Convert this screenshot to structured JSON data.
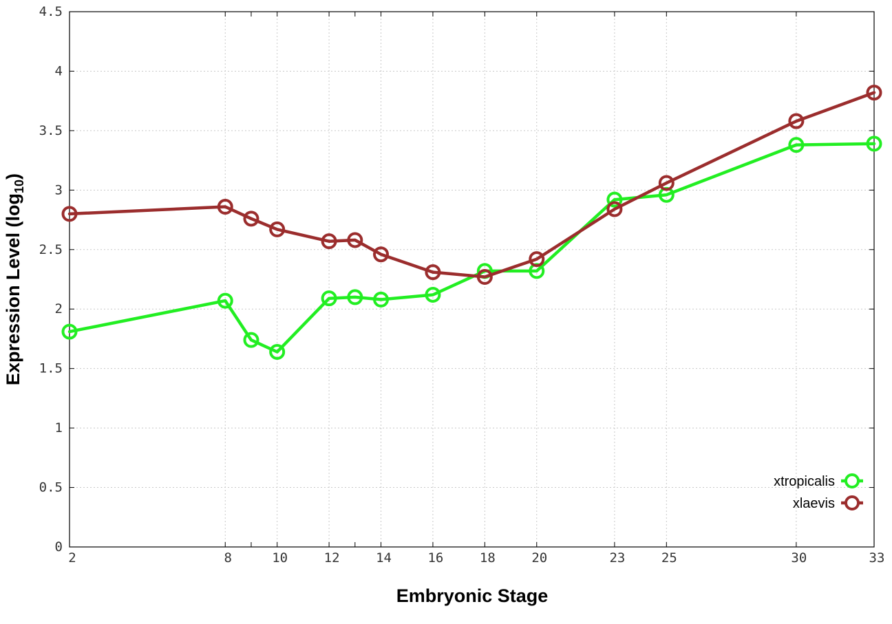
{
  "chart_data": {
    "type": "line",
    "xlabel": "Embryonic Stage",
    "ylabel": {
      "main": "Expression Level (log",
      "subscript": "10",
      "suffix": ")"
    },
    "x_ticks": [
      {
        "value": 2,
        "label": "2"
      },
      {
        "value": 8,
        "label": "8"
      },
      {
        "value": 9,
        "label": ""
      },
      {
        "value": 10,
        "label": "10"
      },
      {
        "value": 12,
        "label": "12"
      },
      {
        "value": 13,
        "label": ""
      },
      {
        "value": 14,
        "label": "14"
      },
      {
        "value": 16,
        "label": "16"
      },
      {
        "value": 18,
        "label": "18"
      },
      {
        "value": 20,
        "label": "20"
      },
      {
        "value": 23,
        "label": "23"
      },
      {
        "value": 25,
        "label": "25"
      },
      {
        "value": 30,
        "label": "30"
      },
      {
        "value": 33,
        "label": "33"
      }
    ],
    "y_ticks": [
      {
        "value": 0,
        "label": "0"
      },
      {
        "value": 0.5,
        "label": "0.5"
      },
      {
        "value": 1,
        "label": "1"
      },
      {
        "value": 1.5,
        "label": "1.5"
      },
      {
        "value": 2,
        "label": "2"
      },
      {
        "value": 2.5,
        "label": "2.5"
      },
      {
        "value": 3,
        "label": "3"
      },
      {
        "value": 3.5,
        "label": "3.5"
      },
      {
        "value": 4,
        "label": "4"
      },
      {
        "value": 4.5,
        "label": "4.5"
      }
    ],
    "ylim": [
      0,
      4.5
    ],
    "grid": true,
    "legend_position": "bottom-right",
    "series": [
      {
        "name": "xtropicalis",
        "color": "#22ee22",
        "points": [
          {
            "x": 2,
            "y": 1.81
          },
          {
            "x": 8,
            "y": 2.07
          },
          {
            "x": 9,
            "y": 1.74
          },
          {
            "x": 10,
            "y": 1.64
          },
          {
            "x": 12,
            "y": 2.09
          },
          {
            "x": 13,
            "y": 2.1
          },
          {
            "x": 14,
            "y": 2.08
          },
          {
            "x": 16,
            "y": 2.12
          },
          {
            "x": 18,
            "y": 2.32
          },
          {
            "x": 20,
            "y": 2.32
          },
          {
            "x": 23,
            "y": 2.92
          },
          {
            "x": 25,
            "y": 2.96
          },
          {
            "x": 30,
            "y": 3.38
          },
          {
            "x": 33,
            "y": 3.39
          }
        ]
      },
      {
        "name": "xlaevis",
        "color": "#9b2d2d",
        "points": [
          {
            "x": 2,
            "y": 2.8
          },
          {
            "x": 8,
            "y": 2.86
          },
          {
            "x": 9,
            "y": 2.76
          },
          {
            "x": 10,
            "y": 2.67
          },
          {
            "x": 12,
            "y": 2.57
          },
          {
            "x": 13,
            "y": 2.58
          },
          {
            "x": 14,
            "y": 2.46
          },
          {
            "x": 16,
            "y": 2.31
          },
          {
            "x": 18,
            "y": 2.27
          },
          {
            "x": 20,
            "y": 2.42
          },
          {
            "x": 23,
            "y": 2.84
          },
          {
            "x": 25,
            "y": 3.06
          },
          {
            "x": 30,
            "y": 3.58
          },
          {
            "x": 33,
            "y": 3.82
          }
        ]
      }
    ]
  }
}
